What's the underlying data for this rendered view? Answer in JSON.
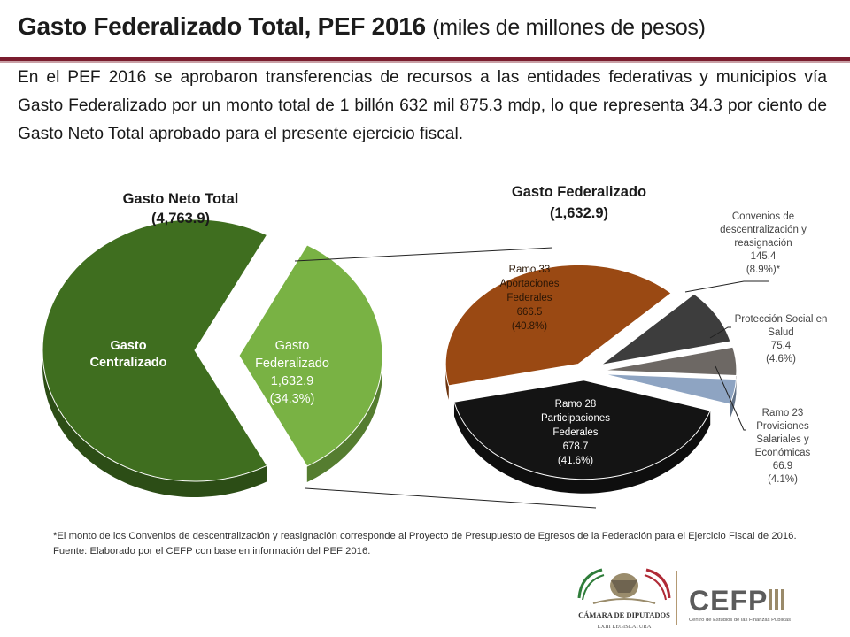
{
  "title": {
    "main": "Gasto Federalizado Total, PEF 2016",
    "units": "(miles de millones de pesos)"
  },
  "intro": "En el PEF 2016 se aprobaron transferencias de recursos a las entidades federativas y municipios vía Gasto Federalizado por un monto total de 1 billón 632 mil 875.3 mdp, lo que representa 34.3 por ciento de Gasto Neto Total aprobado para el presente ejercicio fiscal.",
  "colors": {
    "centralizado": "#3f6e1f",
    "federalizado": "#79b244",
    "ramo33": "#9a4913",
    "ramo28": "#141414",
    "convenios": "#3d3d3d",
    "proteccion": "#6d6864",
    "ramo23": "#8ea4c2",
    "accent": "#7a1d2e"
  },
  "chart_data": [
    {
      "type": "pie",
      "title": "Gasto Neto Total",
      "total_label": "(4,763.9)",
      "slices": [
        {
          "name": "Gasto Centralizado",
          "label_lines": [
            "Gasto",
            "Centralizado"
          ],
          "value": 3131.0
        },
        {
          "name": "Gasto Federalizado",
          "label_lines": [
            "Gasto",
            "Federalizado",
            "1,632.9",
            "(34.3%)"
          ],
          "value": 1632.9,
          "percent": 34.3,
          "exploded": true
        }
      ]
    },
    {
      "type": "pie",
      "title": "Gasto Federalizado",
      "total_label": "(1,632.9)",
      "slices": [
        {
          "name": "Ramo 33 Aportaciones Federales",
          "label_lines": [
            "Ramo 33",
            "Aportaciones",
            "Federales",
            "666.5",
            "(40.8%)"
          ],
          "value": 666.5,
          "percent": 40.8
        },
        {
          "name": "Convenios de descentralización y reasignación",
          "label_lines": [
            "Convenios de",
            "descentralización y",
            "reasignación",
            "145.4",
            "(8.9%)*"
          ],
          "value": 145.4,
          "percent": 8.9
        },
        {
          "name": "Protección Social en Salud",
          "label_lines": [
            "Protección Social en",
            "Salud",
            "75.4",
            "(4.6%)"
          ],
          "value": 75.4,
          "percent": 4.6
        },
        {
          "name": "Ramo 23 Provisiones Salariales y Económicas",
          "label_lines": [
            "Ramo 23",
            "Provisiones",
            "Salariales y",
            "Económicas",
            "66.9",
            "(4.1%)"
          ],
          "value": 66.9,
          "percent": 4.1
        },
        {
          "name": "Ramo 28 Participaciones Federales",
          "label_lines": [
            "Ramo 28",
            "Participaciones",
            "Federales",
            "678.7",
            "(41.6%)"
          ],
          "value": 678.7,
          "percent": 41.6
        }
      ]
    }
  ],
  "footnote": {
    "note": "*El monto de los Convenios de descentralización y reasignación corresponde al Proyecto de Presupuesto de Egresos de la Federación para el Ejercicio Fiscal de 2016.",
    "source": "Fuente: Elaborado por el CEFP con base en información del PEF 2016."
  },
  "logos": {
    "camara_line1": "CÁMARA DE DIPUTADOS",
    "camara_line2": "LXIII LEGISLATURA",
    "cefp": "CEFP",
    "cefp_sub": "Centro de Estudios de las Finanzas Públicas"
  }
}
